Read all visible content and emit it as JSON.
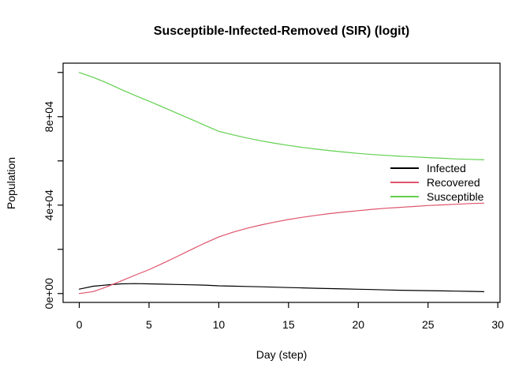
{
  "figure": {
    "background": "#ffffff"
  },
  "chart_data": {
    "type": "line",
    "title": "Susceptible-Infected-Removed (SIR) (logit)",
    "xlabel": "Day (step)",
    "ylabel": "Population",
    "grid": false,
    "xlim": [
      -1.16,
      30.16
    ],
    "ylim": [
      -4008,
      104208
    ],
    "x_ticks": {
      "values": [
        0,
        5,
        10,
        15,
        20,
        25,
        30
      ],
      "labels": [
        "0",
        "5",
        "10",
        "15",
        "20",
        "25",
        "30"
      ]
    },
    "y_ticks": {
      "values": [
        0,
        20000,
        40000,
        60000,
        80000,
        100000
      ],
      "labels": [
        "0e+00",
        "",
        "4e+04",
        "",
        "8e+04",
        ""
      ]
    },
    "legend": {
      "position": "right-middle",
      "box": false
    },
    "x": [
      0,
      1,
      2,
      3,
      4,
      5,
      6,
      7,
      8,
      9,
      10,
      11,
      12,
      13,
      14,
      15,
      16,
      17,
      18,
      19,
      20,
      21,
      22,
      23,
      24,
      25,
      26,
      27,
      28,
      29
    ],
    "series": [
      {
        "name": "Infected",
        "color": "#000000",
        "values": [
          2000,
          3300,
          3900,
          4400,
          4500,
          4400,
          4250,
          4100,
          3950,
          3800,
          3500,
          3350,
          3200,
          3050,
          2900,
          2700,
          2550,
          2400,
          2250,
          2100,
          1950,
          1800,
          1650,
          1500,
          1400,
          1300,
          1200,
          1100,
          975,
          850
        ]
      },
      {
        "name": "Recovered",
        "color": "#DF536B",
        "values": [
          0,
          900,
          3100,
          5700,
          8300,
          10800,
          13700,
          16700,
          19800,
          22800,
          25600,
          27700,
          29500,
          31000,
          32300,
          33500,
          34500,
          35400,
          36200,
          36900,
          37500,
          38100,
          38600,
          39000,
          39400,
          39800,
          40100,
          40400,
          40700,
          40900
        ]
      },
      {
        "name": "Susceptible",
        "color": "#61D04F",
        "values": [
          100000,
          97800,
          95200,
          92300,
          89600,
          87000,
          84300,
          81600,
          78900,
          76100,
          73400,
          71800,
          70400,
          69100,
          68000,
          67000,
          66100,
          65300,
          64600,
          64000,
          63400,
          62900,
          62500,
          62100,
          61800,
          61500,
          61200,
          60900,
          60700,
          60500
        ]
      }
    ]
  }
}
